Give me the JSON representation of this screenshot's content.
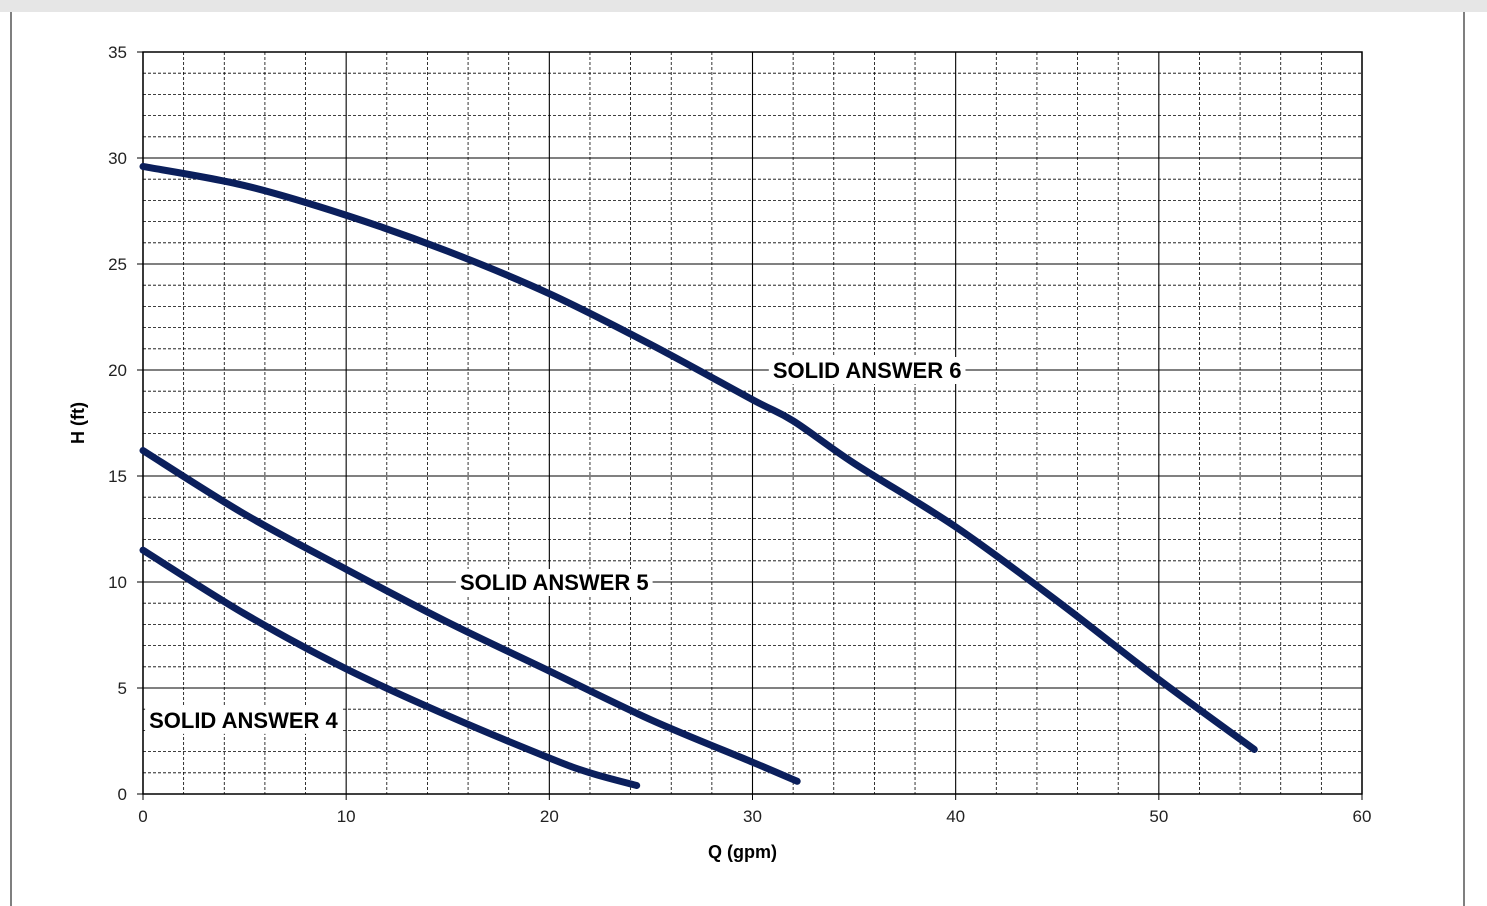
{
  "chart_data": {
    "type": "line",
    "title": "",
    "xlabel": "Q (gpm)",
    "ylabel": "H (ft)",
    "xlim": [
      0,
      60
    ],
    "ylim": [
      0,
      35
    ],
    "x_ticks": [
      "0",
      "10",
      "20",
      "30",
      "40",
      "50",
      "60"
    ],
    "y_ticks": [
      "0",
      "5",
      "10",
      "15",
      "20",
      "25",
      "30",
      "35"
    ],
    "grid": true,
    "line_color": "#0b1f5c",
    "series": [
      {
        "name": "SOLID ANSWER 6",
        "x": [
          0,
          5,
          10,
          15,
          20,
          25,
          30,
          32,
          35,
          40,
          45,
          50,
          54.7
        ],
        "y": [
          29.6,
          28.7,
          27.3,
          25.6,
          23.6,
          21.2,
          18.6,
          17.6,
          15.6,
          12.6,
          9.1,
          5.4,
          2.1
        ]
      },
      {
        "name": "SOLID ANSWER 5",
        "x": [
          0,
          5,
          10,
          15,
          20,
          25,
          30,
          32.2
        ],
        "y": [
          16.2,
          13.2,
          10.6,
          8.1,
          5.8,
          3.5,
          1.5,
          0.6
        ]
      },
      {
        "name": "SOLID ANSWER 4",
        "x": [
          0,
          5,
          10,
          15,
          20,
          22,
          24.3
        ],
        "y": [
          11.5,
          8.5,
          5.9,
          3.7,
          1.7,
          1.0,
          0.4
        ]
      }
    ]
  }
}
